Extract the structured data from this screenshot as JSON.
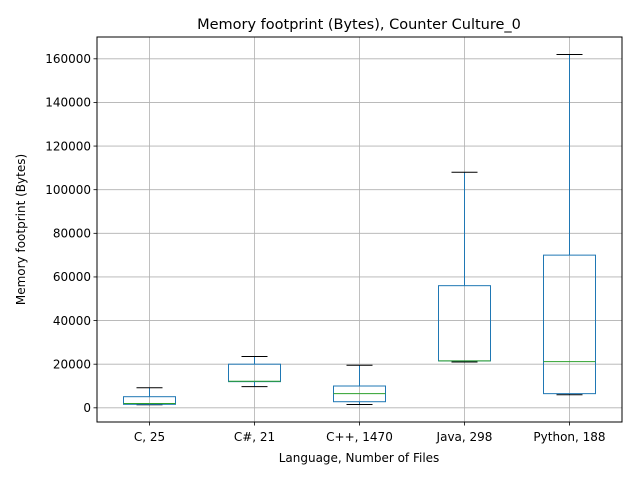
{
  "chart_data": {
    "type": "box",
    "title": "Memory footprint (Bytes), Counter Culture_0",
    "xlabel": "Language, Number of Files",
    "ylabel": "Memory footprint (Bytes)",
    "ylim": [
      -6500,
      170000
    ],
    "yticks": [
      0,
      20000,
      40000,
      60000,
      80000,
      100000,
      120000,
      140000,
      160000
    ],
    "grid": true,
    "colors": {
      "box": "#1f77b4",
      "median": "#2ca02c",
      "whisker_cap": "#000000",
      "grid": "#b0b0b0"
    },
    "categories": [
      "C, 25",
      "C#, 21",
      "C++, 1470",
      "Java, 298",
      "Python, 188"
    ],
    "boxes": [
      {
        "label": "C, 25",
        "whislo": 1400,
        "q1": 1600,
        "med": 2000,
        "q3": 5100,
        "whishi": 9200
      },
      {
        "label": "C#, 21",
        "whislo": 9700,
        "q1": 12000,
        "med": 12200,
        "q3": 20000,
        "whishi": 23500
      },
      {
        "label": "C++, 1470",
        "whislo": 1500,
        "q1": 2800,
        "med": 6500,
        "q3": 10000,
        "whishi": 19500
      },
      {
        "label": "Java, 298",
        "whislo": 21000,
        "q1": 21500,
        "med": 21500,
        "q3": 56000,
        "whishi": 108000
      },
      {
        "label": "Python, 188",
        "whislo": 6000,
        "q1": 6500,
        "med": 21200,
        "q3": 70000,
        "whishi": 162000
      }
    ]
  }
}
